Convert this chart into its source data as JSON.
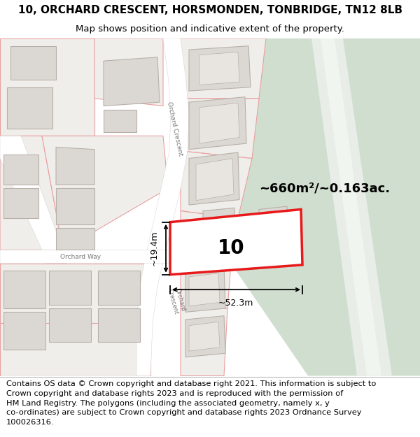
{
  "title": "10, ORCHARD CRESCENT, HORSMONDEN, TONBRIDGE, TN12 8LB",
  "subtitle": "Map shows position and indicative extent of the property.",
  "footer": "Contains OS data © Crown copyright and database right 2021. This information is subject to Crown copyright and database rights 2023 and is reproduced with the permission of\nHM Land Registry. The polygons (including the associated geometry, namely x, y\nco-ordinates) are subject to Crown copyright and database rights 2023 Ordnance Survey\n100026316.",
  "bg_color": "#f5f3f0",
  "property_label": "10",
  "area_label": "~660m²/~0.163ac.",
  "width_label": "~52.3m",
  "height_label": "~19.4m",
  "green_color": "#cfdece",
  "green_stripe_color": "#e8ede8",
  "plot_red": "#e8191a",
  "plot_fill": "#ffffff",
  "road_white": "#ffffff",
  "land_fill": "#f0eeeb",
  "land_stroke": "#e8a0a0",
  "building_fill": "#dbd8d3",
  "building_stroke": "#b8b0a8",
  "title_fontsize": 11,
  "subtitle_fontsize": 9.5,
  "footer_fontsize": 8.2
}
